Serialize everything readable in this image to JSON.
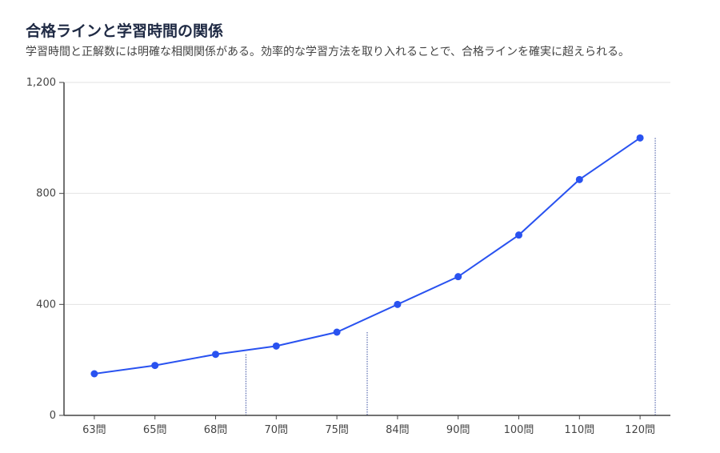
{
  "header": {
    "title": "合格ラインと学習時間の関係",
    "subtitle": "学習時間と正解数には明確な相関関係がある。効率的な学習方法を取り入れることで、合格ラインを確実に超えられる。"
  },
  "chart_data": {
    "type": "line",
    "title": "合格ラインと学習時間の関係",
    "subtitle": "学習時間と正解数には明確な相関関係がある。効率的な学習方法を取り入れることで、合格ラインを確実に超えられる。",
    "categories": [
      "63問",
      "65問",
      "68問",
      "70問",
      "75問",
      "84問",
      "90問",
      "100問",
      "110問",
      "120問"
    ],
    "values": [
      150,
      180,
      220,
      250,
      300,
      400,
      500,
      650,
      850,
      1000
    ],
    "ylim": [
      0,
      1200
    ],
    "yticks": [
      0,
      400,
      800,
      1200
    ],
    "ytick_labels": [
      "0",
      "400",
      "800",
      "1,200"
    ],
    "reference_lines": [
      {
        "between": [
          "68問",
          "70問"
        ],
        "value": 220
      },
      {
        "between": [
          "75問",
          "84問"
        ],
        "value": 300
      },
      {
        "between": [
          "120問",
          ""
        ],
        "value": 1000
      }
    ],
    "grid": true,
    "line_color": "#2952f0",
    "reference_color": "#3a4fa0"
  }
}
